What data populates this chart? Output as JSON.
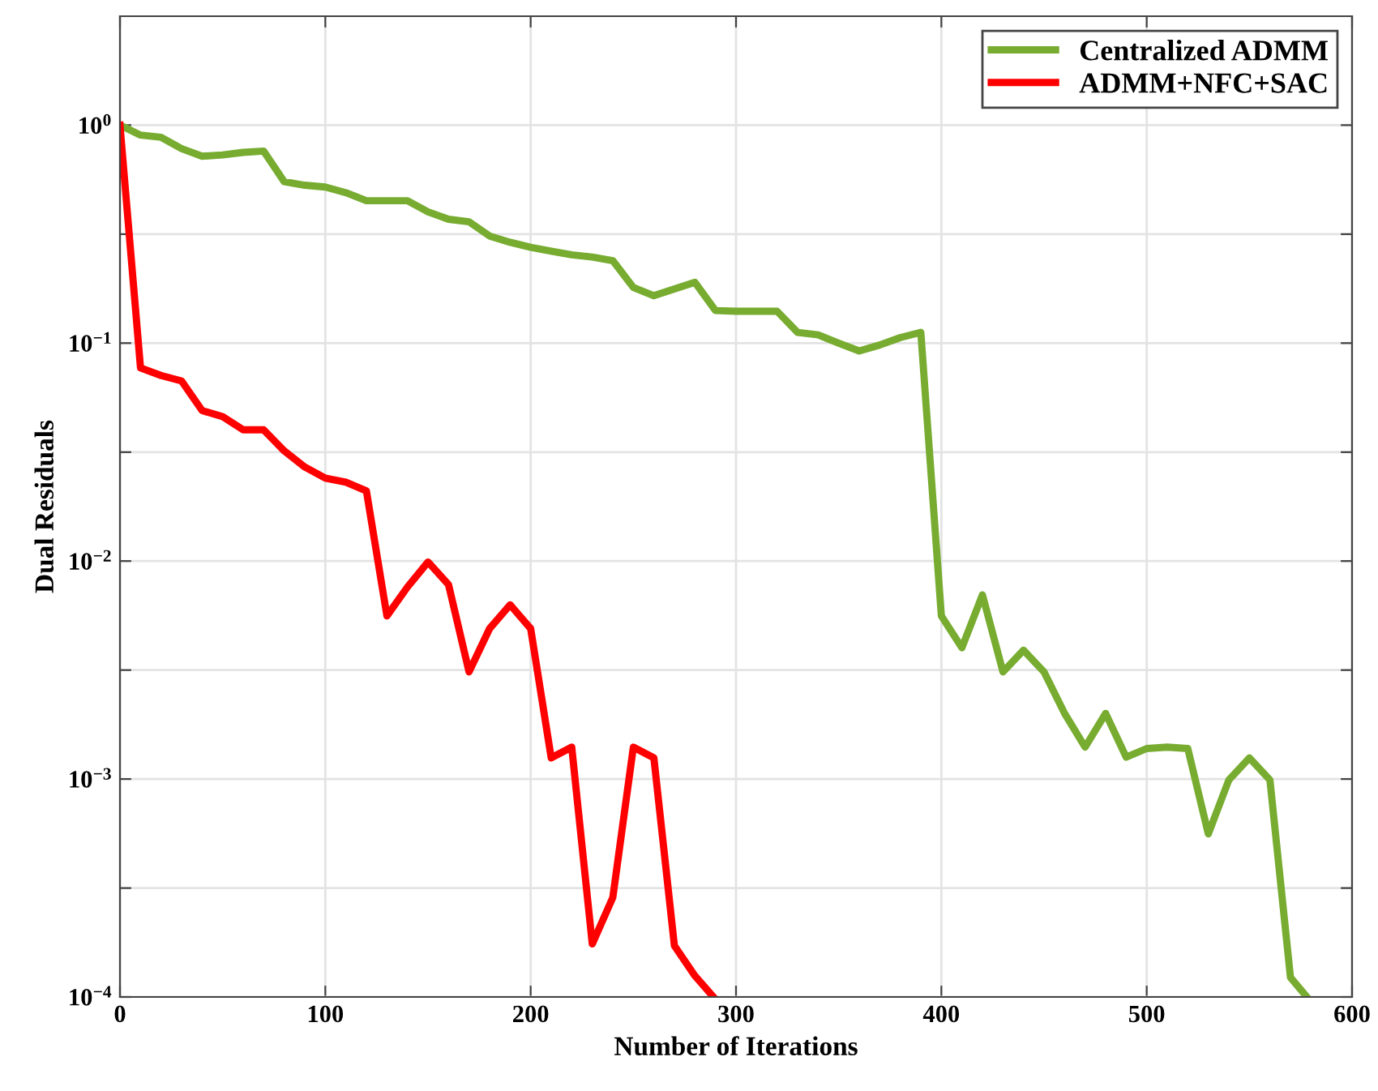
{
  "chart_data": {
    "type": "line",
    "xlabel": "Number of Iterations",
    "ylabel": "Dual Residuals",
    "log": "y",
    "grid": true,
    "legend": "top right",
    "line_style": "solid",
    "marker": "none",
    "xlim": [
      0,
      600
    ],
    "xticks": [
      0,
      100,
      200,
      300,
      400,
      500,
      600
    ],
    "ylim": [
      0.0001,
      3.16
    ],
    "yticks": [
      {
        "value": 0.0001,
        "label": "10$^{−4}$"
      },
      {
        "value": 0.000316,
        "label": null
      },
      {
        "value": 0.001,
        "label": "10$^{−3}$"
      },
      {
        "value": 0.00316,
        "label": null
      },
      {
        "value": 0.01,
        "label": "10$^{−2}$"
      },
      {
        "value": 0.0316,
        "label": null
      },
      {
        "value": 0.1,
        "label": "10$^{−1}$"
      },
      {
        "value": 0.316,
        "label": null
      },
      {
        "value": 1,
        "label": "10$^{0}$"
      }
    ],
    "series": [
      {
        "name": "Centralized ADMM",
        "color": "#77ac30",
        "x": [
          0,
          10,
          20,
          30,
          40,
          50,
          60,
          70,
          80,
          90,
          100,
          110,
          120,
          130,
          140,
          150,
          160,
          170,
          180,
          190,
          200,
          210,
          220,
          230,
          240,
          250,
          260,
          270,
          280,
          290,
          300,
          310,
          320,
          330,
          340,
          350,
          360,
          370,
          380,
          390,
          400,
          410,
          420,
          430,
          440,
          450,
          460,
          470,
          480,
          490,
          500,
          510,
          520,
          530,
          540,
          550,
          560,
          570,
          578
        ],
        "values": [
          1.0,
          0.9,
          0.88,
          0.78,
          0.72,
          0.73,
          0.75,
          0.76,
          0.55,
          0.53,
          0.52,
          0.49,
          0.45,
          0.45,
          0.45,
          0.4,
          0.37,
          0.36,
          0.31,
          0.29,
          0.275,
          0.264,
          0.254,
          0.248,
          0.239,
          0.18,
          0.165,
          0.177,
          0.19,
          0.141,
          0.14,
          0.14,
          0.14,
          0.112,
          0.109,
          0.1,
          0.092,
          0.098,
          0.106,
          0.112,
          0.0056,
          0.004,
          0.007,
          0.0031,
          0.0039,
          0.0031,
          0.002,
          0.0014,
          0.002,
          0.00126,
          0.00138,
          0.0014,
          0.00138,
          0.00056,
          0.00099,
          0.00125,
          0.00099,
          0.000123,
          0.0001
        ]
      },
      {
        "name": "ADMM+NFC+SAC",
        "color": "#ff0000",
        "x": [
          0,
          10,
          20,
          30,
          40,
          50,
          60,
          70,
          80,
          90,
          100,
          110,
          120,
          130,
          140,
          150,
          160,
          170,
          180,
          190,
          200,
          210,
          220,
          230,
          240,
          250,
          260,
          270,
          280,
          289
        ],
        "values": [
          1.0,
          0.077,
          0.071,
          0.067,
          0.049,
          0.046,
          0.04,
          0.04,
          0.032,
          0.027,
          0.024,
          0.023,
          0.021,
          0.0056,
          0.0076,
          0.0099,
          0.0078,
          0.0031,
          0.0049,
          0.0063,
          0.0049,
          0.00125,
          0.0014,
          0.000175,
          0.000286,
          0.0014,
          0.00125,
          0.000172,
          0.000125,
          0.0001
        ]
      }
    ]
  }
}
